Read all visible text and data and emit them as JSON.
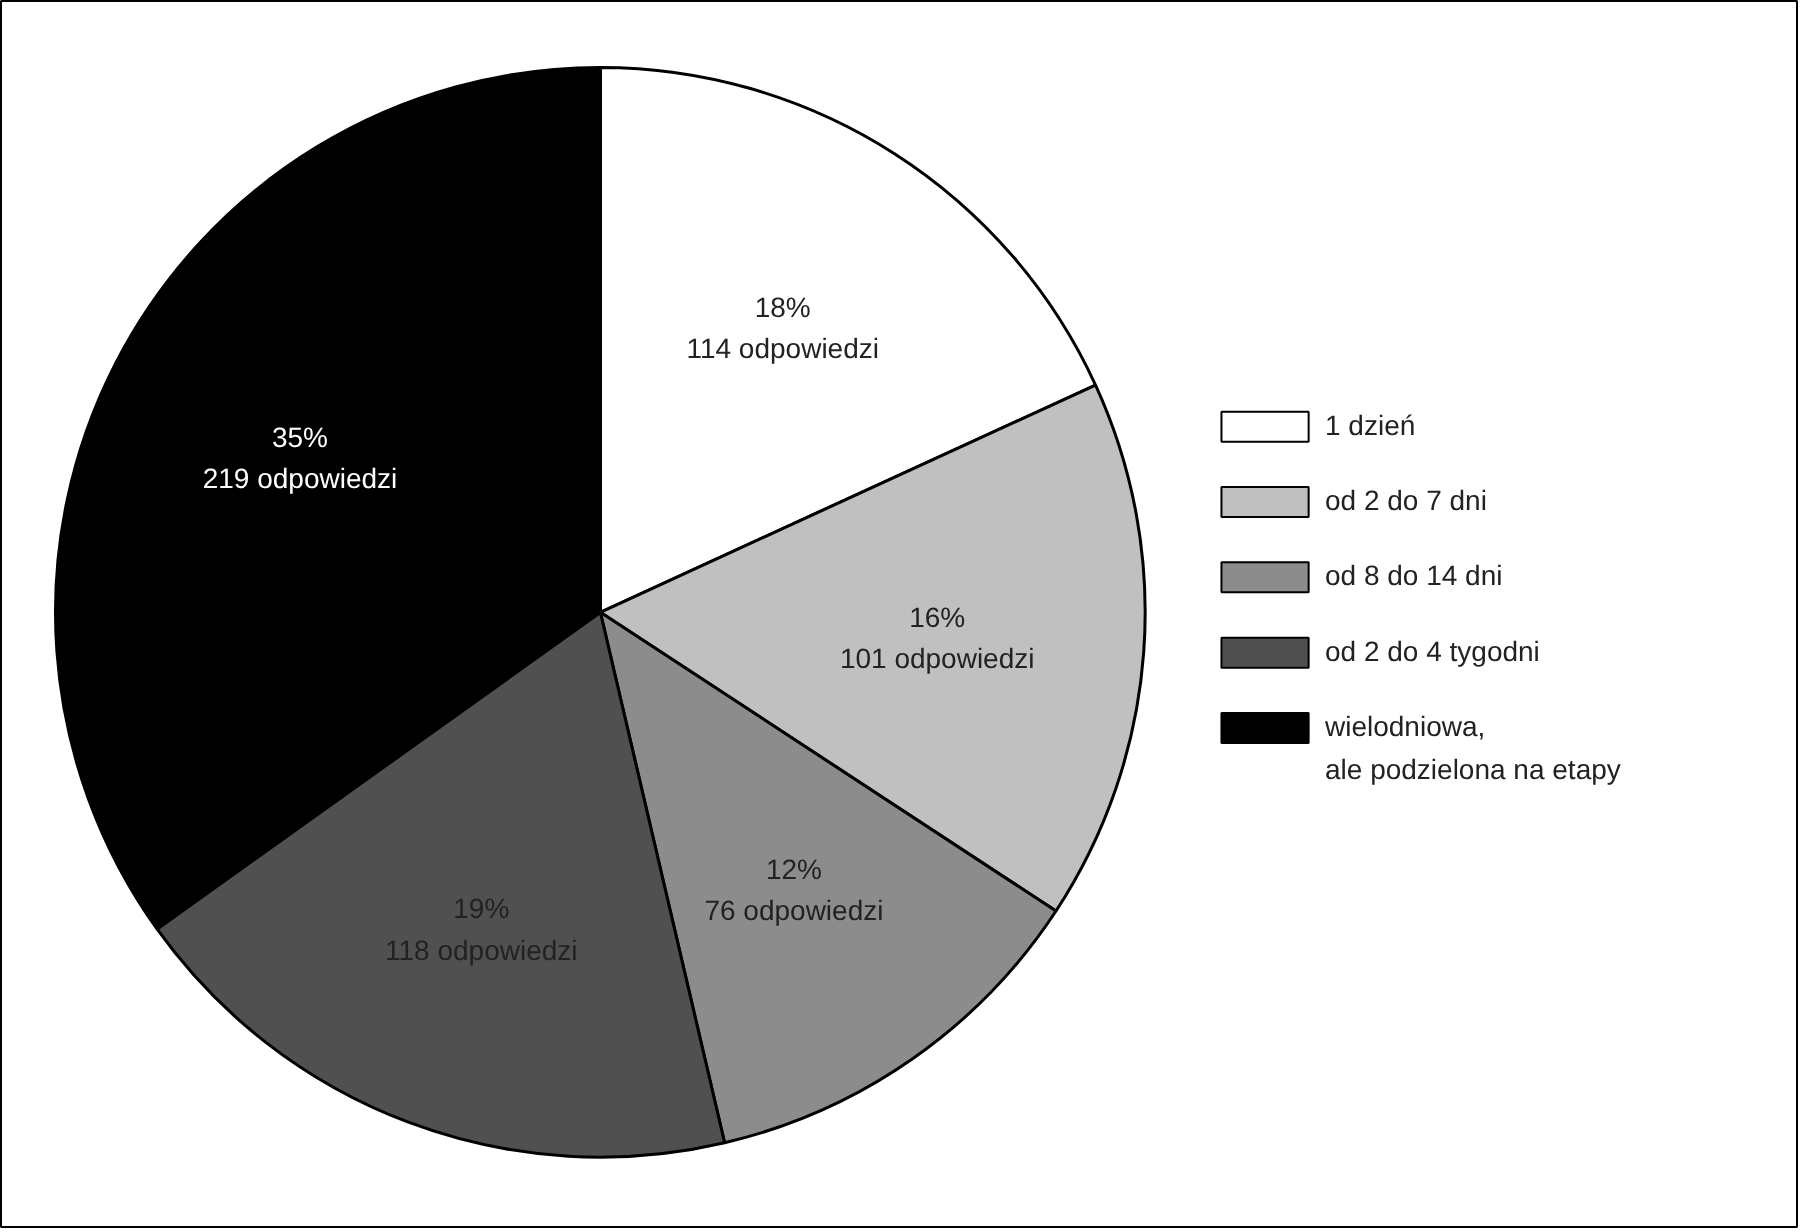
{
  "chart_data": {
    "type": "pie",
    "categories": [
      "1 dzień",
      "od 2 do 7 dni",
      "od 8 do 14 dni",
      "od 2 do 4 tygodni",
      "wielodniowa,\nale podzielona na etapy"
    ],
    "values": [
      114,
      101,
      76,
      118,
      219
    ],
    "value_labels": [
      "18%\n114 odpowiedzi",
      "16%\n101 odpowiedzi",
      "12%\n76 odpowiedzi",
      "19%\n118 odpowiedzi",
      "35%\n219 odpowiedzi"
    ],
    "colors": [
      "#ffffff",
      "#c0c0c0",
      "#8c8c8c",
      "#505050",
      "#000000"
    ],
    "legend": "right"
  }
}
